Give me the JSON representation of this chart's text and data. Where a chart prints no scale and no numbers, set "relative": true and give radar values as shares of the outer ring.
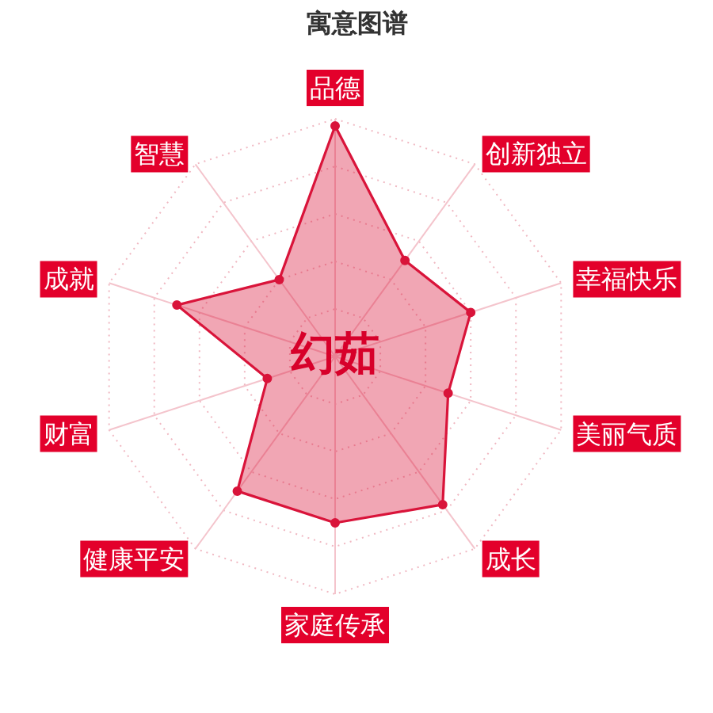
{
  "chart_data": {
    "type": "radar",
    "title": "寓意图谱",
    "categories": [
      "品德",
      "创新独立",
      "幸福快乐",
      "美丽气质",
      "成长",
      "家庭传承",
      "健康平安",
      "财富",
      "成就",
      "智慧"
    ],
    "relative": true,
    "series": [
      {
        "color": "#d9143a",
        "values": [
          0.97,
          0.5,
          0.6,
          0.5,
          0.77,
          0.7,
          0.7,
          0.3,
          0.7,
          0.4
        ]
      }
    ],
    "annotations": [
      "幻茹"
    ],
    "grid": true,
    "marker": "circle"
  }
}
